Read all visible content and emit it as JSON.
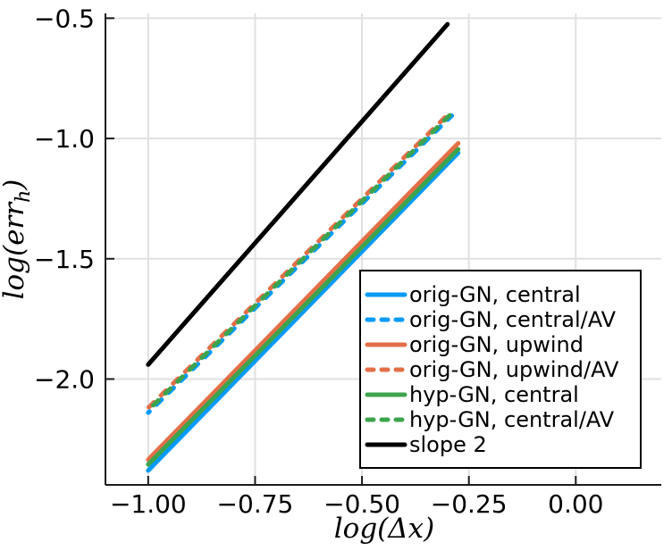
{
  "figure": {
    "background": "#ffffff",
    "grid_color": "#e0e0e0",
    "axis_color": "#1c1c1c",
    "legend_border_color": "#000000",
    "text_color": "#000000"
  },
  "chart_data": {
    "type": "line",
    "title": "",
    "xlabel": "log(Δx)",
    "ylabel": "log(err_h)",
    "ylabel_parts": {
      "main": "log(err",
      "sub": "h",
      "close": ")"
    },
    "xlim": [
      -1.1,
      0.2
    ],
    "ylim": [
      -2.44,
      -0.48
    ],
    "grid": true,
    "legend_position": "inside center-right",
    "x_ticks": [
      -1.0,
      -0.75,
      -0.5,
      -0.25,
      0.0
    ],
    "x_tick_labels": [
      "−1.00",
      "−0.75",
      "−0.50",
      "−0.25",
      "0.00"
    ],
    "y_ticks": [
      -0.5,
      -1.0,
      -1.5,
      -2.0
    ],
    "y_tick_labels": [
      "−0.5",
      "−1.0",
      "−1.5",
      "−2.0"
    ],
    "series": [
      {
        "name": "orig-GN, central",
        "color": "#009AFA",
        "style": "solid",
        "x": [
          -1.0,
          -0.275
        ],
        "y": [
          -2.38,
          -1.06
        ]
      },
      {
        "name": "orig-GN, central/AV",
        "color": "#009AFA",
        "style": "dashed",
        "x": [
          -1.0,
          -0.29
        ],
        "y": [
          -2.14,
          -0.905
        ]
      },
      {
        "name": "orig-GN, upwind",
        "color": "#E36F47",
        "style": "solid",
        "x": [
          -1.0,
          -0.275
        ],
        "y": [
          -2.335,
          -1.02
        ]
      },
      {
        "name": "orig-GN, upwind/AV",
        "color": "#E36F47",
        "style": "dashed",
        "x": [
          -1.0,
          -0.29
        ],
        "y": [
          -2.12,
          -0.885
        ]
      },
      {
        "name": "hyp-GN, central",
        "color": "#3DA44E",
        "style": "solid",
        "x": [
          -1.0,
          -0.275
        ],
        "y": [
          -2.355,
          -1.045
        ]
      },
      {
        "name": "hyp-GN, central/AV",
        "color": "#3DA44E",
        "style": "dashed",
        "x": [
          -1.0,
          -0.29
        ],
        "y": [
          -2.13,
          -0.895
        ]
      },
      {
        "name": "slope 2",
        "color": "#000000",
        "style": "solid",
        "x": [
          -1.0,
          -0.3
        ],
        "y": [
          -1.94,
          -0.525
        ]
      }
    ]
  }
}
